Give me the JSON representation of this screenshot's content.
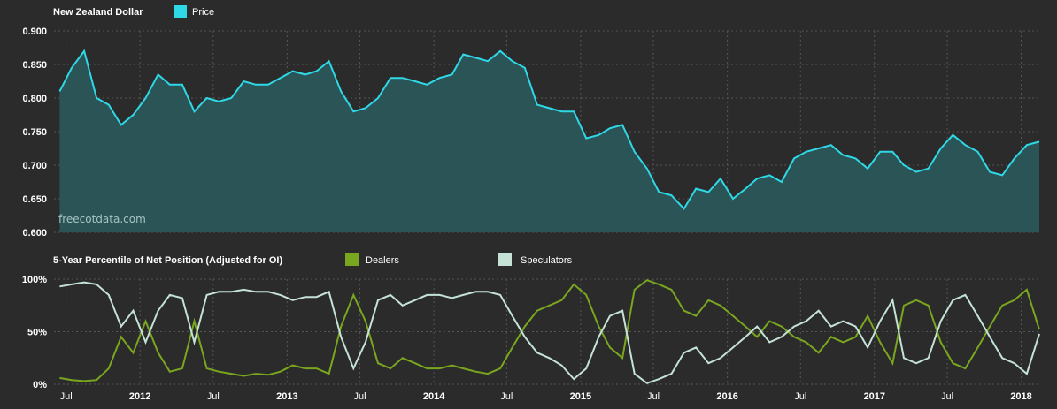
{
  "watermark": "freecotdata.com",
  "colors": {
    "background": "#2b2b2b",
    "price_line": "#2fd8e6",
    "price_fill": "#2a5456",
    "dealers": "#7aa61f",
    "speculators": "#c4e3d6"
  },
  "chart_data": [
    {
      "type": "area",
      "title": "New Zealand Dollar",
      "legend": [
        {
          "name": "Price",
          "color": "#2fd8e6"
        }
      ],
      "ylim": [
        0.6,
        0.9
      ],
      "yticks": [
        "0.900",
        "0.850",
        "0.800",
        "0.750",
        "0.700",
        "0.650",
        "0.600"
      ],
      "x_range": [
        "2011-06-01",
        "2018-02-15"
      ],
      "series": [
        {
          "name": "Price",
          "points": [
            [
              "2011-06",
              0.81
            ],
            [
              "2011-07",
              0.845
            ],
            [
              "2011-08",
              0.87
            ],
            [
              "2011-09",
              0.8
            ],
            [
              "2011-10",
              0.79
            ],
            [
              "2011-11",
              0.76
            ],
            [
              "2011-12",
              0.775
            ],
            [
              "2012-01",
              0.8
            ],
            [
              "2012-02",
              0.835
            ],
            [
              "2012-03",
              0.82
            ],
            [
              "2012-04",
              0.82
            ],
            [
              "2012-05",
              0.78
            ],
            [
              "2012-06",
              0.8
            ],
            [
              "2012-07",
              0.795
            ],
            [
              "2012-08",
              0.8
            ],
            [
              "2012-09",
              0.825
            ],
            [
              "2012-10",
              0.82
            ],
            [
              "2012-11",
              0.82
            ],
            [
              "2012-12",
              0.83
            ],
            [
              "2013-01",
              0.84
            ],
            [
              "2013-02",
              0.835
            ],
            [
              "2013-03",
              0.84
            ],
            [
              "2013-04",
              0.855
            ],
            [
              "2013-05",
              0.81
            ],
            [
              "2013-06",
              0.78
            ],
            [
              "2013-07",
              0.785
            ],
            [
              "2013-08",
              0.8
            ],
            [
              "2013-09",
              0.83
            ],
            [
              "2013-10",
              0.83
            ],
            [
              "2013-11",
              0.825
            ],
            [
              "2013-12",
              0.82
            ],
            [
              "2014-01",
              0.83
            ],
            [
              "2014-02",
              0.835
            ],
            [
              "2014-03",
              0.865
            ],
            [
              "2014-04",
              0.86
            ],
            [
              "2014-05",
              0.855
            ],
            [
              "2014-06",
              0.87
            ],
            [
              "2014-07",
              0.855
            ],
            [
              "2014-08",
              0.845
            ],
            [
              "2014-09",
              0.79
            ],
            [
              "2014-10",
              0.785
            ],
            [
              "2014-11",
              0.78
            ],
            [
              "2014-12",
              0.78
            ],
            [
              "2015-01",
              0.74
            ],
            [
              "2015-02",
              0.745
            ],
            [
              "2015-03",
              0.755
            ],
            [
              "2015-04",
              0.76
            ],
            [
              "2015-05",
              0.72
            ],
            [
              "2015-06",
              0.695
            ],
            [
              "2015-07",
              0.66
            ],
            [
              "2015-08",
              0.655
            ],
            [
              "2015-09",
              0.635
            ],
            [
              "2015-10",
              0.665
            ],
            [
              "2015-11",
              0.66
            ],
            [
              "2015-12",
              0.68
            ],
            [
              "2016-01",
              0.65
            ],
            [
              "2016-02",
              0.665
            ],
            [
              "2016-03",
              0.68
            ],
            [
              "2016-04",
              0.685
            ],
            [
              "2016-05",
              0.675
            ],
            [
              "2016-06",
              0.71
            ],
            [
              "2016-07",
              0.72
            ],
            [
              "2016-08",
              0.725
            ],
            [
              "2016-09",
              0.73
            ],
            [
              "2016-10",
              0.715
            ],
            [
              "2016-11",
              0.71
            ],
            [
              "2016-12",
              0.695
            ],
            [
              "2017-01",
              0.72
            ],
            [
              "2017-02",
              0.72
            ],
            [
              "2017-03",
              0.7
            ],
            [
              "2017-04",
              0.69
            ],
            [
              "2017-05",
              0.695
            ],
            [
              "2017-06",
              0.725
            ],
            [
              "2017-07",
              0.745
            ],
            [
              "2017-08",
              0.73
            ],
            [
              "2017-09",
              0.72
            ],
            [
              "2017-10",
              0.69
            ],
            [
              "2017-11",
              0.685
            ],
            [
              "2017-12",
              0.71
            ],
            [
              "2018-01",
              0.73
            ],
            [
              "2018-02",
              0.735
            ]
          ]
        }
      ]
    },
    {
      "type": "line",
      "title": "5-Year Percentile of Net Position (Adjusted for OI)",
      "legend": [
        {
          "name": "Dealers",
          "color": "#7aa61f"
        },
        {
          "name": "Speculators",
          "color": "#c4e3d6"
        }
      ],
      "ylim": [
        0,
        100
      ],
      "yticks": [
        "100%",
        "50%",
        "0%"
      ],
      "xticks": [
        "Jul",
        "2012",
        "Jul",
        "2013",
        "Jul",
        "2014",
        "Jul",
        "2015",
        "Jul",
        "2016",
        "Jul",
        "2017",
        "Jul",
        "2018"
      ],
      "xtick_dates": [
        "2011-07-01",
        "2012-01-01",
        "2012-07-01",
        "2013-01-01",
        "2013-07-01",
        "2014-01-01",
        "2014-07-01",
        "2015-01-01",
        "2015-07-01",
        "2016-01-01",
        "2016-07-01",
        "2017-01-01",
        "2017-07-01",
        "2018-01-01"
      ],
      "x_range": [
        "2011-06-01",
        "2018-02-15"
      ],
      "series": [
        {
          "name": "Dealers",
          "points": [
            [
              "2011-06",
              6
            ],
            [
              "2011-07",
              4
            ],
            [
              "2011-08",
              3
            ],
            [
              "2011-09",
              4
            ],
            [
              "2011-10",
              15
            ],
            [
              "2011-11",
              45
            ],
            [
              "2011-12",
              30
            ],
            [
              "2012-01",
              60
            ],
            [
              "2012-02",
              30
            ],
            [
              "2012-03",
              12
            ],
            [
              "2012-04",
              15
            ],
            [
              "2012-05",
              60
            ],
            [
              "2012-06",
              15
            ],
            [
              "2012-07",
              12
            ],
            [
              "2012-08",
              10
            ],
            [
              "2012-09",
              8
            ],
            [
              "2012-10",
              10
            ],
            [
              "2012-11",
              9
            ],
            [
              "2012-12",
              12
            ],
            [
              "2013-01",
              18
            ],
            [
              "2013-02",
              15
            ],
            [
              "2013-03",
              15
            ],
            [
              "2013-04",
              10
            ],
            [
              "2013-05",
              55
            ],
            [
              "2013-06",
              85
            ],
            [
              "2013-07",
              60
            ],
            [
              "2013-08",
              20
            ],
            [
              "2013-09",
              15
            ],
            [
              "2013-10",
              25
            ],
            [
              "2013-11",
              20
            ],
            [
              "2013-12",
              15
            ],
            [
              "2014-01",
              15
            ],
            [
              "2014-02",
              18
            ],
            [
              "2014-03",
              15
            ],
            [
              "2014-04",
              12
            ],
            [
              "2014-05",
              10
            ],
            [
              "2014-06",
              15
            ],
            [
              "2014-07",
              35
            ],
            [
              "2014-08",
              55
            ],
            [
              "2014-09",
              70
            ],
            [
              "2014-10",
              75
            ],
            [
              "2014-11",
              80
            ],
            [
              "2014-12",
              95
            ],
            [
              "2015-01",
              85
            ],
            [
              "2015-02",
              55
            ],
            [
              "2015-03",
              35
            ],
            [
              "2015-04",
              25
            ],
            [
              "2015-05",
              90
            ],
            [
              "2015-06",
              99
            ],
            [
              "2015-07",
              95
            ],
            [
              "2015-08",
              90
            ],
            [
              "2015-09",
              70
            ],
            [
              "2015-10",
              65
            ],
            [
              "2015-11",
              80
            ],
            [
              "2015-12",
              75
            ],
            [
              "2016-01",
              65
            ],
            [
              "2016-02",
              55
            ],
            [
              "2016-03",
              45
            ],
            [
              "2016-04",
              60
            ],
            [
              "2016-05",
              55
            ],
            [
              "2016-06",
              45
            ],
            [
              "2016-07",
              40
            ],
            [
              "2016-08",
              30
            ],
            [
              "2016-09",
              45
            ],
            [
              "2016-10",
              40
            ],
            [
              "2016-11",
              45
            ],
            [
              "2016-12",
              65
            ],
            [
              "2017-01",
              40
            ],
            [
              "2017-02",
              20
            ],
            [
              "2017-03",
              75
            ],
            [
              "2017-04",
              80
            ],
            [
              "2017-05",
              75
            ],
            [
              "2017-06",
              40
            ],
            [
              "2017-07",
              20
            ],
            [
              "2017-08",
              15
            ],
            [
              "2017-09",
              35
            ],
            [
              "2017-10",
              55
            ],
            [
              "2017-11",
              75
            ],
            [
              "2017-12",
              80
            ],
            [
              "2018-01",
              90
            ],
            [
              "2018-02",
              52
            ]
          ]
        },
        {
          "name": "Speculators",
          "points": [
            [
              "2011-06",
              93
            ],
            [
              "2011-07",
              95
            ],
            [
              "2011-08",
              97
            ],
            [
              "2011-09",
              95
            ],
            [
              "2011-10",
              85
            ],
            [
              "2011-11",
              55
            ],
            [
              "2011-12",
              70
            ],
            [
              "2012-01",
              40
            ],
            [
              "2012-02",
              70
            ],
            [
              "2012-03",
              85
            ],
            [
              "2012-04",
              82
            ],
            [
              "2012-05",
              40
            ],
            [
              "2012-06",
              85
            ],
            [
              "2012-07",
              88
            ],
            [
              "2012-08",
              88
            ],
            [
              "2012-09",
              90
            ],
            [
              "2012-10",
              88
            ],
            [
              "2012-11",
              88
            ],
            [
              "2012-12",
              85
            ],
            [
              "2013-01",
              80
            ],
            [
              "2013-02",
              83
            ],
            [
              "2013-03",
              83
            ],
            [
              "2013-04",
              88
            ],
            [
              "2013-05",
              45
            ],
            [
              "2013-06",
              15
            ],
            [
              "2013-07",
              40
            ],
            [
              "2013-08",
              80
            ],
            [
              "2013-09",
              85
            ],
            [
              "2013-10",
              75
            ],
            [
              "2013-11",
              80
            ],
            [
              "2013-12",
              85
            ],
            [
              "2014-01",
              85
            ],
            [
              "2014-02",
              82
            ],
            [
              "2014-03",
              85
            ],
            [
              "2014-04",
              88
            ],
            [
              "2014-05",
              88
            ],
            [
              "2014-06",
              85
            ],
            [
              "2014-07",
              65
            ],
            [
              "2014-08",
              45
            ],
            [
              "2014-09",
              30
            ],
            [
              "2014-10",
              25
            ],
            [
              "2014-11",
              18
            ],
            [
              "2014-12",
              5
            ],
            [
              "2015-01",
              15
            ],
            [
              "2015-02",
              45
            ],
            [
              "2015-03",
              65
            ],
            [
              "2015-04",
              70
            ],
            [
              "2015-05",
              10
            ],
            [
              "2015-06",
              1
            ],
            [
              "2015-07",
              5
            ],
            [
              "2015-08",
              10
            ],
            [
              "2015-09",
              30
            ],
            [
              "2015-10",
              35
            ],
            [
              "2015-11",
              20
            ],
            [
              "2015-12",
              25
            ],
            [
              "2016-01",
              35
            ],
            [
              "2016-02",
              45
            ],
            [
              "2016-03",
              55
            ],
            [
              "2016-04",
              40
            ],
            [
              "2016-05",
              45
            ],
            [
              "2016-06",
              55
            ],
            [
              "2016-07",
              60
            ],
            [
              "2016-08",
              70
            ],
            [
              "2016-09",
              55
            ],
            [
              "2016-10",
              60
            ],
            [
              "2016-11",
              55
            ],
            [
              "2016-12",
              35
            ],
            [
              "2017-01",
              60
            ],
            [
              "2017-02",
              80
            ],
            [
              "2017-03",
              25
            ],
            [
              "2017-04",
              20
            ],
            [
              "2017-05",
              25
            ],
            [
              "2017-06",
              60
            ],
            [
              "2017-07",
              80
            ],
            [
              "2017-08",
              85
            ],
            [
              "2017-09",
              65
            ],
            [
              "2017-10",
              45
            ],
            [
              "2017-11",
              25
            ],
            [
              "2017-12",
              20
            ],
            [
              "2018-01",
              10
            ],
            [
              "2018-02",
              48
            ]
          ]
        }
      ]
    }
  ]
}
